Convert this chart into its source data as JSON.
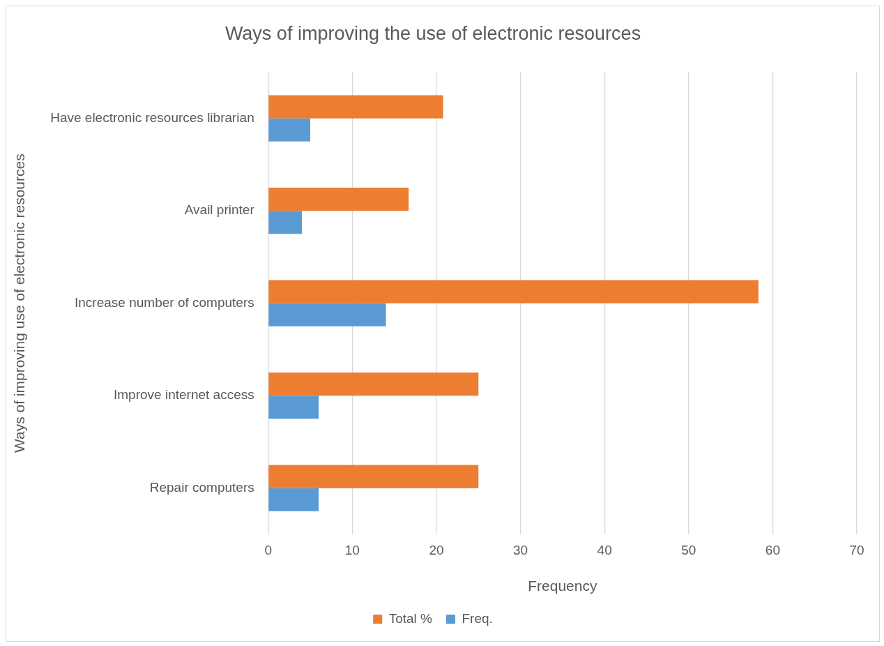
{
  "chart_data": {
    "type": "bar",
    "orientation": "horizontal",
    "title": "Ways of improving the use of electronic resources",
    "xlabel": "Frequency",
    "ylabel": "Ways of improving use of electronic resources",
    "categories": [
      "Have electronic resources librarian",
      "Avail printer",
      "Increase number of computers",
      "Improve internet access",
      "Repair computers"
    ],
    "series": [
      {
        "name": "Total %",
        "color": "#ed7d31",
        "values": [
          20.8,
          16.7,
          58.3,
          25,
          25
        ]
      },
      {
        "name": "Freq.",
        "color": "#5b9bd5",
        "values": [
          5,
          4,
          14,
          6,
          6
        ]
      }
    ],
    "xlim": [
      0,
      70
    ],
    "xticks": [
      0,
      10,
      20,
      30,
      40,
      50,
      60,
      70
    ],
    "grid": "x",
    "legend": "bottom"
  }
}
